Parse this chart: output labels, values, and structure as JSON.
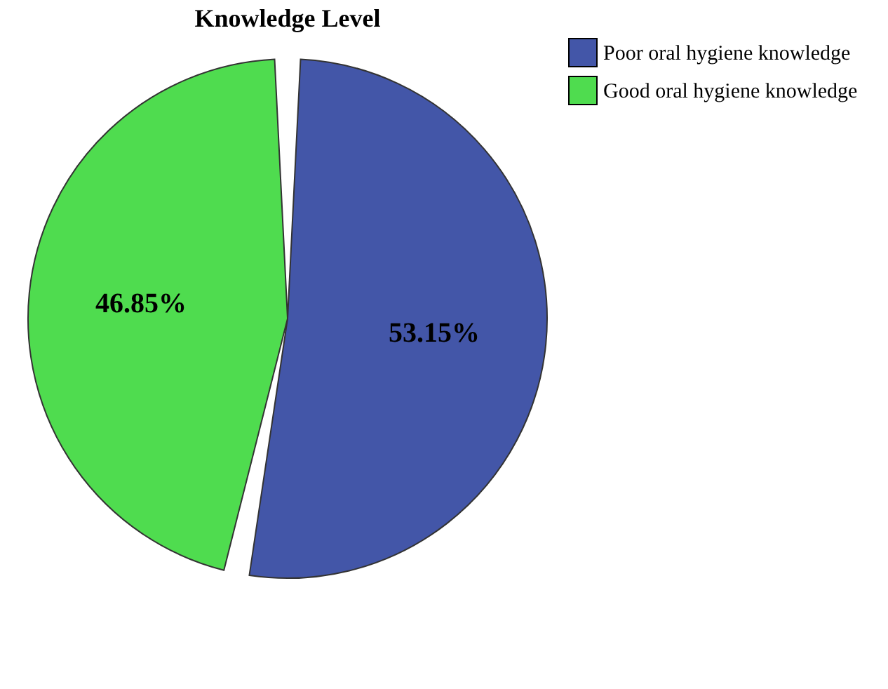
{
  "chart_data": {
    "type": "pie",
    "title": "Knowledge Level",
    "categories": [
      "Poor oral hygiene knowledge",
      "Good oral hygiene knowledge"
    ],
    "values": [
      53.15,
      46.85
    ],
    "colors": [
      "#4356a8",
      "#4fdc4f"
    ],
    "value_labels": [
      "53.15%",
      "46.85%"
    ],
    "legend": "top right"
  }
}
